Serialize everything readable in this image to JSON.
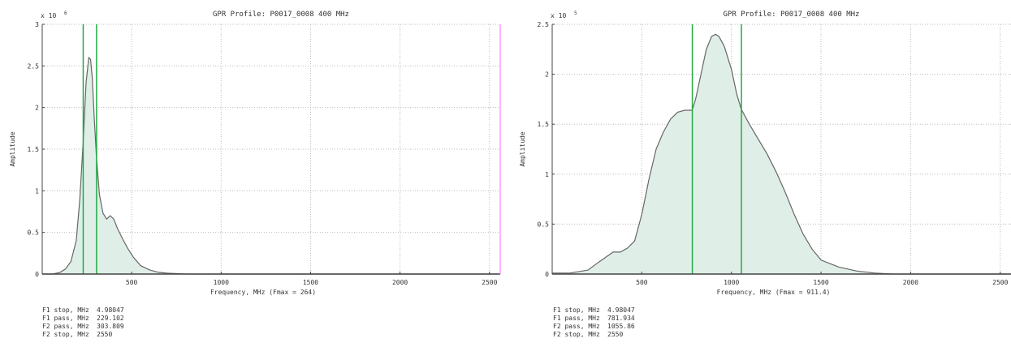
{
  "chart_data": [
    {
      "type": "area",
      "title": "GPR Profile: P0017_0008 400 MHz",
      "xlabel": "Frequency, MHz (Fmax = 264)",
      "ylabel": "Amplitude",
      "y_multiplier": "x 10",
      "y_exponent": "6",
      "xlim": [
        0,
        2560
      ],
      "ylim": [
        0,
        3
      ],
      "x_ticks": [
        500,
        1000,
        1500,
        2000,
        2500
      ],
      "y_ticks": [
        0,
        0.5,
        1,
        1.5,
        2,
        2.5,
        3
      ],
      "y_tick_labels": [
        "0",
        "0.5",
        "1",
        "1.5",
        "2",
        "2.5",
        "3"
      ],
      "grid": true,
      "markers": [
        229.102,
        303.809
      ],
      "series": [
        {
          "x": [
            0,
            60,
            100,
            130,
            160,
            190,
            210,
            229,
            245,
            260,
            270,
            280,
            290,
            303,
            320,
            340,
            360,
            380,
            400,
            420,
            450,
            480,
            510,
            550,
            600,
            650,
            700,
            800,
            900,
            1000,
            1200,
            2550
          ],
          "y": [
            0,
            0,
            0.02,
            0.06,
            0.15,
            0.4,
            0.9,
            1.6,
            2.3,
            2.6,
            2.58,
            2.35,
            1.9,
            1.4,
            0.95,
            0.73,
            0.66,
            0.7,
            0.66,
            0.55,
            0.42,
            0.3,
            0.2,
            0.1,
            0.05,
            0.02,
            0.01,
            0.0,
            0.0,
            0.0,
            0.0,
            0.0
          ]
        }
      ],
      "params": [
        {
          "label": "F1 stop, MHz",
          "value": "4.98047"
        },
        {
          "label": "F1 pass, MHz",
          "value": "229.102"
        },
        {
          "label": "F2 pass, MHz",
          "value": "303.809"
        },
        {
          "label": "F2 stop, MHz",
          "value": "2550"
        }
      ]
    },
    {
      "type": "area",
      "title": "GPR Profile: P0017_0008 400 MHz",
      "xlabel": "Frequency, MHz (Fmax = 911.4)",
      "ylabel": "Amplitude",
      "y_multiplier": "x 10",
      "y_exponent": "5",
      "xlim": [
        0,
        2560
      ],
      "ylim": [
        0,
        2.5
      ],
      "x_ticks": [
        500,
        1000,
        1500,
        2000,
        2500
      ],
      "y_ticks": [
        0,
        0.5,
        1,
        1.5,
        2,
        2.5
      ],
      "y_tick_labels": [
        "0",
        "0.5",
        "1",
        "1.5",
        "2",
        "2.5"
      ],
      "grid": true,
      "markers": [
        781.934,
        1055.86
      ],
      "series": [
        {
          "x": [
            0,
            100,
            200,
            260,
            300,
            340,
            380,
            420,
            460,
            500,
            540,
            580,
            620,
            660,
            700,
            740,
            781,
            800,
            830,
            860,
            890,
            911,
            930,
            960,
            1000,
            1030,
            1055,
            1100,
            1150,
            1200,
            1250,
            1300,
            1350,
            1400,
            1450,
            1500,
            1600,
            1700,
            1800,
            1900,
            2000,
            2200,
            2550
          ],
          "y": [
            0.01,
            0.01,
            0.04,
            0.12,
            0.17,
            0.22,
            0.22,
            0.26,
            0.33,
            0.6,
            0.95,
            1.25,
            1.42,
            1.55,
            1.62,
            1.64,
            1.64,
            1.75,
            2.0,
            2.25,
            2.38,
            2.4,
            2.38,
            2.28,
            2.05,
            1.8,
            1.65,
            1.5,
            1.35,
            1.2,
            1.02,
            0.82,
            0.6,
            0.4,
            0.25,
            0.14,
            0.07,
            0.03,
            0.01,
            0.0,
            0.0,
            0.0,
            0.0
          ]
        }
      ],
      "params": [
        {
          "label": "F1 stop, MHz",
          "value": "4.98047"
        },
        {
          "label": "F1 pass, MHz",
          "value": "781.934"
        },
        {
          "label": "F2 pass, MHz",
          "value": "1055.86"
        },
        {
          "label": "F2 stop, MHz",
          "value": "2550"
        }
      ]
    }
  ],
  "colors": {
    "fill": "#dfefe7",
    "line": "#666666",
    "marker": "#22aa44",
    "grid": "#bbbbbb",
    "axis": "#444444",
    "right_border_left_panel": "#ff66ff"
  }
}
